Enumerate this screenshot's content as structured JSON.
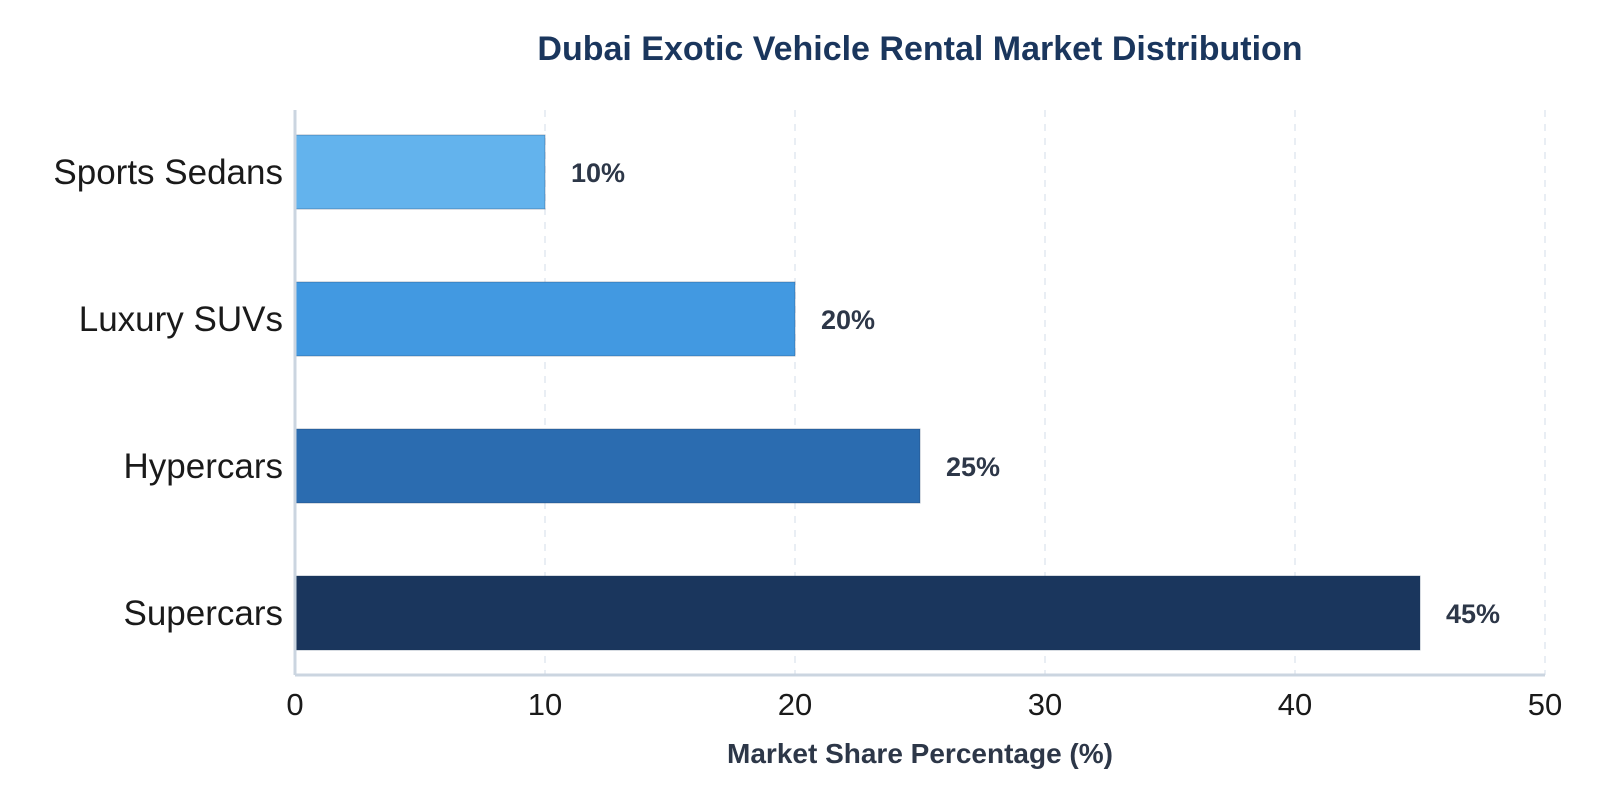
{
  "chart_data": {
    "type": "bar",
    "orientation": "horizontal",
    "title": "Dubai Exotic Vehicle Rental Market Distribution",
    "xlabel": "Market Share Percentage (%)",
    "ylabel": "",
    "xlim": [
      0,
      50
    ],
    "x_ticks": [
      "0",
      "10",
      "20",
      "30",
      "40",
      "50"
    ],
    "grid": "vertical-dashed",
    "legend": "none",
    "categories": [
      "Sports Sedans",
      "Luxury SUVs",
      "Hypercars",
      "Supercars"
    ],
    "values": [
      10,
      20,
      25,
      45
    ],
    "value_labels": [
      "10%",
      "20%",
      "25%",
      "45%"
    ],
    "bar_colors": [
      "#63b3ed",
      "#4299e1",
      "#2b6cb0",
      "#1a365d"
    ]
  },
  "colors": {
    "title": "#1a365d",
    "text": "#1a1a1a",
    "value_label": "#2d3748",
    "axis_title": "#2d3748",
    "axis_line": "#cbd5e0",
    "grid": "#e2e8f0"
  }
}
